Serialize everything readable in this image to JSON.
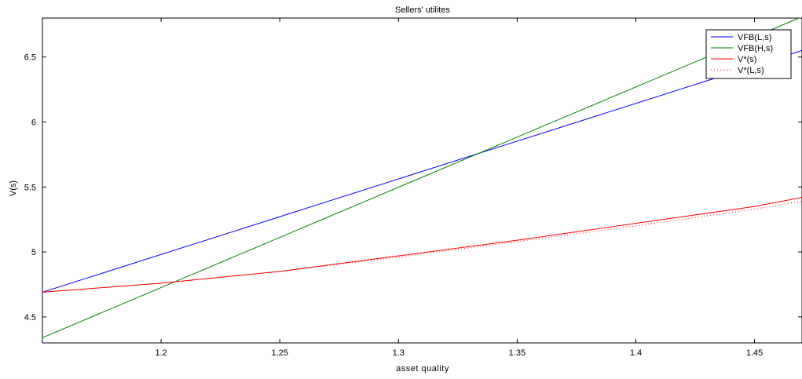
{
  "chart_data": {
    "type": "line",
    "title": "Sellers' utilites",
    "xlabel": "asset quality",
    "ylabel": "V(s)",
    "xlim": [
      1.15,
      1.47
    ],
    "ylim": [
      4.3,
      6.8
    ],
    "xticks": [
      1.2,
      1.25,
      1.3,
      1.35,
      1.4,
      1.45
    ],
    "xtick_labels": [
      "1.2",
      "1.25",
      "1.3",
      "1.35",
      "1.4",
      "1.45"
    ],
    "yticks": [
      4.5,
      5,
      5.5,
      6,
      6.5
    ],
    "ytick_labels": [
      "4.5",
      "5",
      "5.5",
      "6",
      "6.5"
    ],
    "grid": false,
    "legend_position": "top-right",
    "series": [
      {
        "name": "VFB(L,s)",
        "color": "#0000ff",
        "style": "solid",
        "x": [
          1.15,
          1.47
        ],
        "y": [
          4.69,
          6.55
        ]
      },
      {
        "name": "VFB(H,s)",
        "color": "#008000",
        "style": "solid",
        "x": [
          1.15,
          1.47
        ],
        "y": [
          4.34,
          6.81
        ]
      },
      {
        "name": "V*(s)",
        "color": "#ff0000",
        "style": "solid",
        "x": [
          1.15,
          1.2,
          1.25,
          1.3,
          1.35,
          1.4,
          1.45,
          1.47
        ],
        "y": [
          4.69,
          4.76,
          4.85,
          4.97,
          5.09,
          5.22,
          5.35,
          5.42
        ]
      },
      {
        "name": "V*(L,s)",
        "color": "#ff0000",
        "style": "dotted",
        "x": [
          1.15,
          1.2,
          1.25,
          1.3,
          1.35,
          1.4,
          1.45,
          1.47
        ],
        "y": [
          4.69,
          4.76,
          4.85,
          4.96,
          5.08,
          5.2,
          5.33,
          5.39
        ]
      }
    ]
  }
}
